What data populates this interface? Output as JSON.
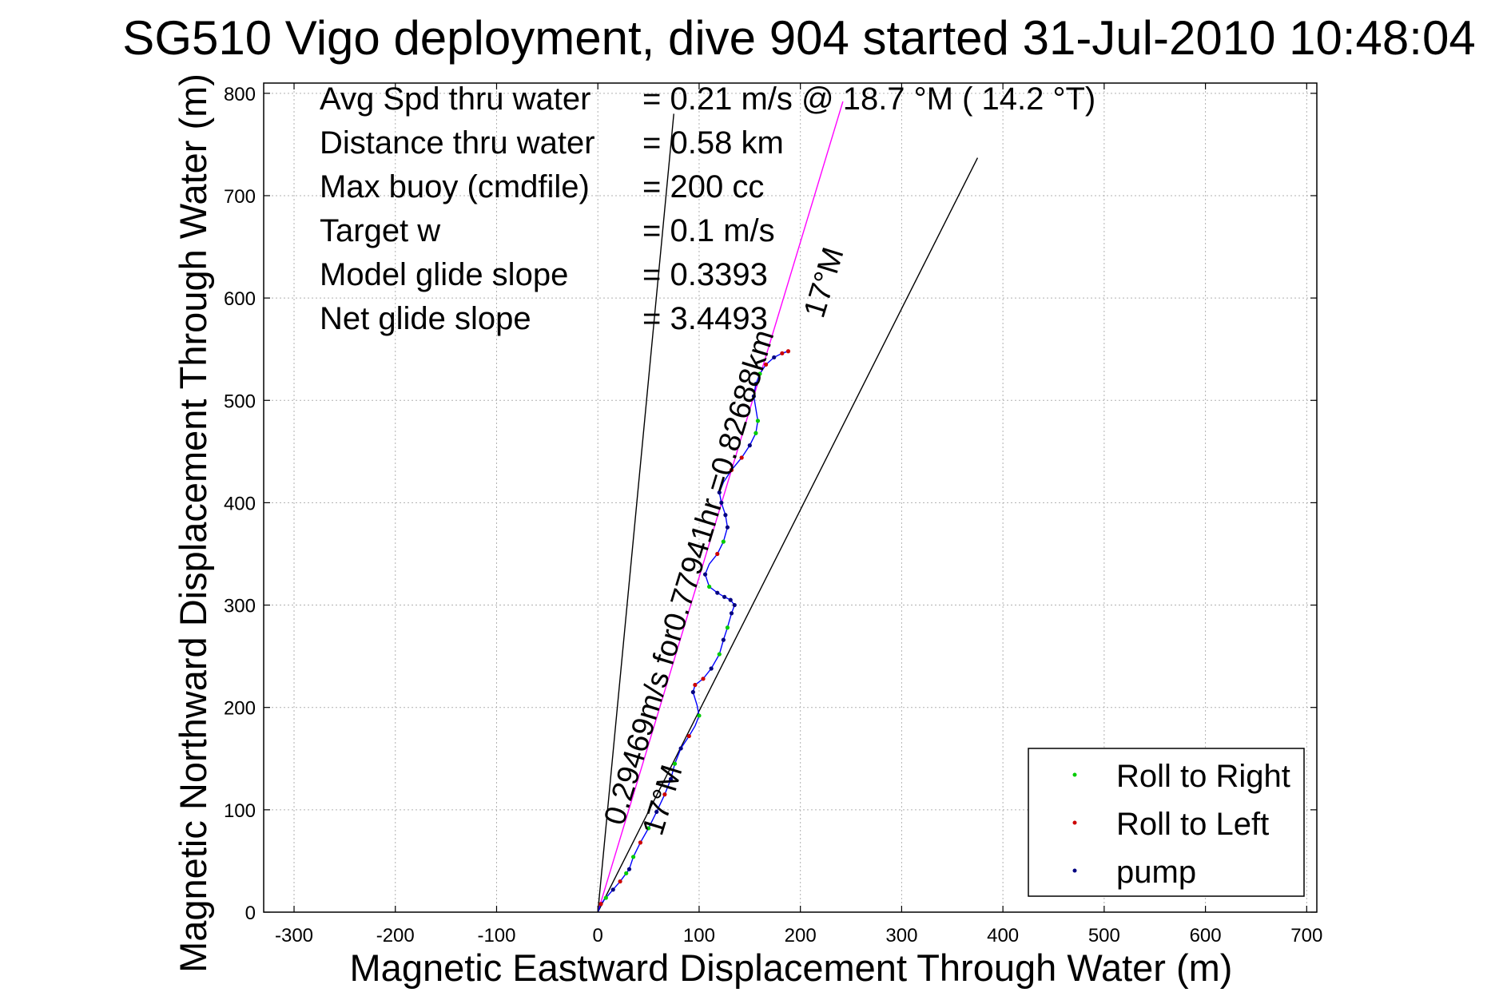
{
  "chart_data": {
    "type": "line",
    "title": "SG510 Vigo deployment, dive 904 started 31-Jul-2010 10:48:04",
    "xlabel": "Magnetic Eastward Displacement Through Water (m)",
    "ylabel": "Magnetic Northward Displacement Through Water (m)",
    "xlim": [
      -330,
      710
    ],
    "ylim": [
      0,
      810
    ],
    "xticks": [
      -300,
      -200,
      -100,
      0,
      100,
      200,
      300,
      400,
      500,
      600,
      700
    ],
    "yticks": [
      0,
      100,
      200,
      300,
      400,
      500,
      600,
      700,
      800
    ],
    "grid": true,
    "legend_position": "bottom-right",
    "stats": [
      {
        "label": "Avg Spd thru water",
        "value": "=  0.21 m/s @  18.7 °M ( 14.2 °T)"
      },
      {
        "label": "Distance thru water",
        "value": "=  0.58 km"
      },
      {
        "label": "Max buoy (cmdfile)",
        "value": "= 200 cc"
      },
      {
        "label": "Target w",
        "value": "= 0.1 m/s"
      },
      {
        "label": "Model glide slope",
        "value": "= 0.3393"
      },
      {
        "label": "Net glide slope",
        "value": "= 3.4493"
      }
    ],
    "annotations": {
      "course_text": "0.29469m/s for0.77941hr =0.82688km",
      "heading_start": "17°M",
      "heading_end": "17°M"
    },
    "reference_lines": [
      {
        "name": "left bound",
        "x": [
          0,
          75
        ],
        "y": [
          0,
          780
        ]
      },
      {
        "name": "right bound",
        "x": [
          0,
          375
        ],
        "y": [
          0,
          737
        ]
      },
      {
        "name": "heading",
        "x": [
          0,
          242
        ],
        "y": [
          0,
          792
        ]
      }
    ],
    "track": {
      "x": [
        0,
        3,
        8,
        15,
        22,
        28,
        31,
        35,
        42,
        50,
        58,
        66,
        72,
        76,
        82,
        90,
        96,
        100,
        98,
        94,
        96,
        104,
        112,
        120,
        124,
        128,
        132,
        135,
        131,
        125,
        118,
        110,
        106,
        110,
        118,
        124,
        128,
        126,
        122,
        120,
        124,
        132,
        142,
        150,
        156,
        158,
        156,
        154,
        156,
        160,
        166,
        174,
        182,
        188
      ],
      "y": [
        0,
        8,
        14,
        22,
        30,
        38,
        42,
        54,
        68,
        82,
        98,
        115,
        130,
        145,
        160,
        172,
        182,
        192,
        202,
        215,
        222,
        228,
        238,
        252,
        266,
        278,
        292,
        300,
        305,
        308,
        312,
        318,
        330,
        340,
        350,
        362,
        376,
        388,
        400,
        410,
        420,
        432,
        444,
        456,
        468,
        480,
        492,
        504,
        516,
        526,
        535,
        542,
        546,
        548
      ]
    },
    "series": [
      {
        "name": "Roll to Right",
        "color": "#00cc00",
        "x": [
          8,
          28,
          35,
          50,
          76,
          100,
          120,
          128,
          110,
          124,
          156,
          158,
          160
        ],
        "y": [
          14,
          38,
          54,
          82,
          145,
          192,
          252,
          278,
          318,
          362,
          468,
          480,
          526
        ]
      },
      {
        "name": "Roll to Left",
        "color": "#cc0000",
        "x": [
          3,
          22,
          42,
          66,
          90,
          96,
          104,
          118,
          132,
          142,
          166,
          182,
          188
        ],
        "y": [
          8,
          30,
          68,
          115,
          172,
          222,
          228,
          350,
          432,
          444,
          535,
          546,
          548
        ]
      },
      {
        "name": "pump",
        "color": "#000080",
        "x": [
          15,
          31,
          58,
          72,
          82,
          94,
          112,
          124,
          132,
          135,
          131,
          125,
          118,
          106,
          128,
          126,
          122,
          120,
          150,
          154,
          156,
          174
        ],
        "y": [
          22,
          42,
          98,
          130,
          160,
          215,
          238,
          266,
          292,
          300,
          305,
          308,
          312,
          330,
          376,
          388,
          400,
          410,
          456,
          504,
          516,
          542
        ]
      }
    ],
    "colors": {
      "track": "#0000ff",
      "heading_line": "#ff00ff",
      "bounds": "#000000",
      "grid": "#b0b0b0"
    }
  }
}
